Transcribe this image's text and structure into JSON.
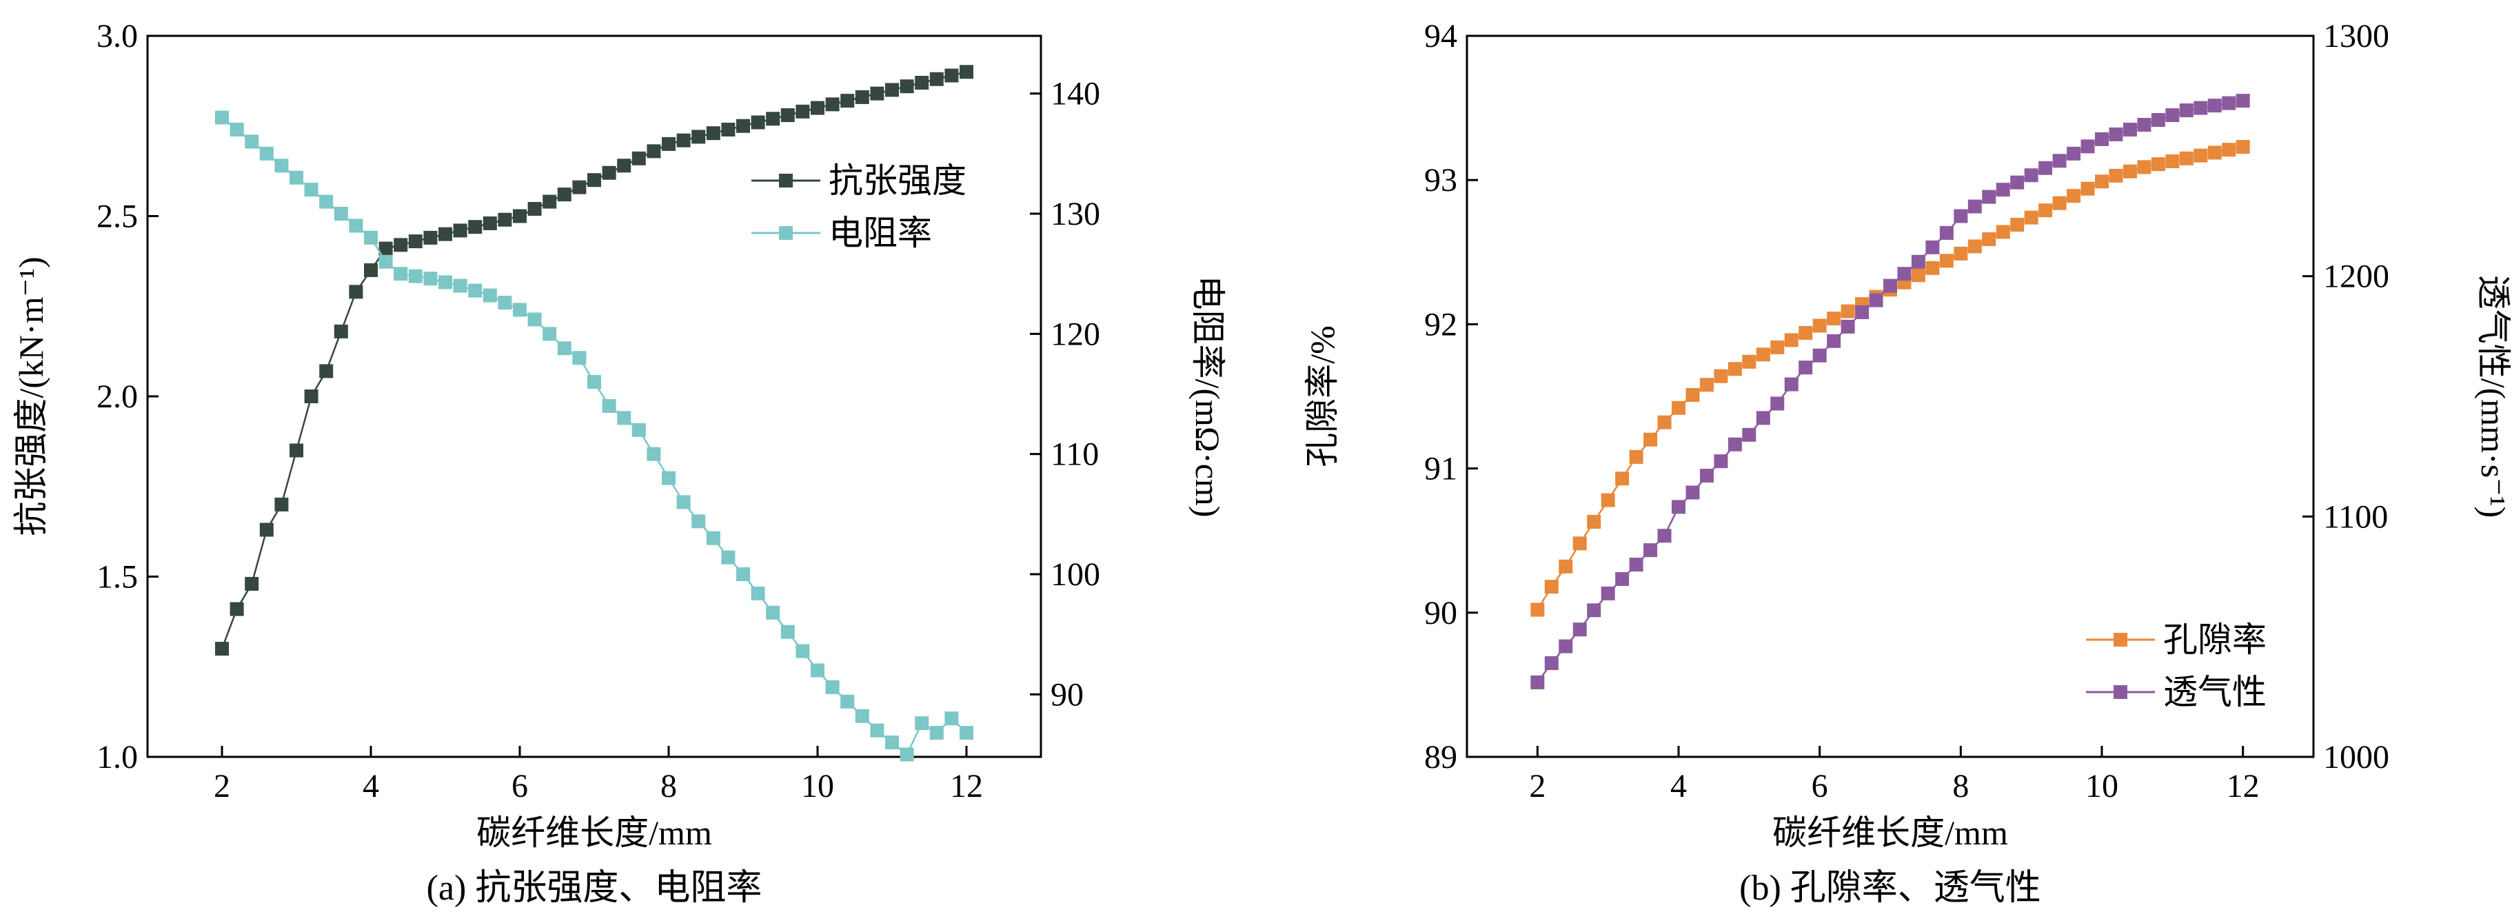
{
  "chart_data": [
    {
      "panel_caption": "(a) 抗张强度、电阻率",
      "type": "line",
      "xlabel": "碳纤维长度/mm",
      "ylabel_left": "抗张强度/(kN·m⁻¹)",
      "ylabel_right": "电阻率/(mΩ·cm)",
      "xlim": [
        1,
        13
      ],
      "ylim_left": [
        1.0,
        3.0
      ],
      "ylim_right": [
        84.8,
        144.8
      ],
      "xticks": [
        "2",
        "4",
        "6",
        "8",
        "10",
        "12"
      ],
      "yticks_left": [
        "1.0",
        "1.5",
        "2.0",
        "2.5",
        "3.0"
      ],
      "yticks_right": [
        "90",
        "100",
        "110",
        "120",
        "130",
        "140"
      ],
      "legend_position": "upper-right",
      "grid": false,
      "series": [
        {
          "name": "抗张强度",
          "axis": "left",
          "color": "#36473f",
          "marker": "square",
          "x": [
            2,
            2.2,
            2.4,
            2.6,
            2.8,
            3,
            3.2,
            3.4,
            3.6,
            3.8,
            4,
            4.2,
            4.4,
            4.6,
            4.8,
            5,
            5.2,
            5.4,
            5.6,
            5.8,
            6,
            6.2,
            6.4,
            6.6,
            6.8,
            7,
            7.2,
            7.4,
            7.6,
            7.8,
            8,
            8.2,
            8.4,
            8.6,
            8.8,
            9,
            9.2,
            9.4,
            9.6,
            9.8,
            10,
            10.2,
            10.4,
            10.6,
            10.8,
            11,
            11.2,
            11.4,
            11.6,
            11.8,
            12
          ],
          "y": [
            1.3,
            1.41,
            1.48,
            1.63,
            1.7,
            1.85,
            2.0,
            2.07,
            2.18,
            2.29,
            2.35,
            2.41,
            2.42,
            2.43,
            2.44,
            2.45,
            2.46,
            2.47,
            2.48,
            2.49,
            2.5,
            2.52,
            2.54,
            2.56,
            2.58,
            2.6,
            2.62,
            2.64,
            2.66,
            2.68,
            2.7,
            2.71,
            2.72,
            2.73,
            2.74,
            2.75,
            2.76,
            2.77,
            2.78,
            2.79,
            2.8,
            2.81,
            2.82,
            2.83,
            2.84,
            2.85,
            2.86,
            2.87,
            2.88,
            2.89,
            2.9
          ]
        },
        {
          "name": "电阻率",
          "axis": "right",
          "color": "#7cc6c6",
          "marker": "square",
          "x": [
            2,
            2.2,
            2.4,
            2.6,
            2.8,
            3,
            3.2,
            3.4,
            3.6,
            3.8,
            4,
            4.2,
            4.4,
            4.6,
            4.8,
            5,
            5.2,
            5.4,
            5.6,
            5.8,
            6,
            6.2,
            6.4,
            6.6,
            6.8,
            7,
            7.2,
            7.4,
            7.6,
            7.8,
            8,
            8.2,
            8.4,
            8.6,
            8.8,
            9,
            9.2,
            9.4,
            9.6,
            9.8,
            10,
            10.2,
            10.4,
            10.6,
            10.8,
            11,
            11.2,
            11.4,
            11.6,
            11.8,
            12
          ],
          "y": [
            138,
            137,
            136,
            135,
            134,
            133,
            132,
            131,
            130,
            129,
            128,
            126,
            125,
            124.8,
            124.6,
            124.3,
            124,
            123.6,
            123.2,
            122.6,
            122,
            121.2,
            120,
            118.8,
            118,
            116,
            114,
            113,
            112,
            110,
            108,
            106,
            104.4,
            103,
            101.4,
            100,
            98.4,
            96.8,
            95.2,
            93.6,
            92,
            90.6,
            89.4,
            88.2,
            87,
            86,
            85,
            87.6,
            86.8,
            88,
            86.8
          ]
        }
      ]
    },
    {
      "panel_caption": "(b) 孔隙率、透气性",
      "type": "line",
      "xlabel": "碳纤维长度/mm",
      "ylabel_left": "孔隙率/%",
      "ylabel_right": "透气性/(mm·s⁻¹)",
      "xlim": [
        1,
        13
      ],
      "ylim_left": [
        89,
        94
      ],
      "ylim_right": [
        1000,
        1300
      ],
      "xticks": [
        "2",
        "4",
        "6",
        "8",
        "10",
        "12"
      ],
      "yticks_left": [
        "89",
        "90",
        "91",
        "92",
        "93",
        "94"
      ],
      "yticks_right": [
        "1000",
        "1100",
        "1200",
        "1300"
      ],
      "legend_position": "lower-right",
      "grid": false,
      "series": [
        {
          "name": "孔隙率",
          "axis": "left",
          "color": "#e8883a",
          "marker": "square",
          "x": [
            2,
            2.2,
            2.4,
            2.6,
            2.8,
            3,
            3.2,
            3.4,
            3.6,
            3.8,
            4,
            4.2,
            4.4,
            4.6,
            4.8,
            5,
            5.2,
            5.4,
            5.6,
            5.8,
            6,
            6.2,
            6.4,
            6.6,
            6.8,
            7,
            7.2,
            7.4,
            7.6,
            7.8,
            8,
            8.2,
            8.4,
            8.6,
            8.8,
            9,
            9.2,
            9.4,
            9.6,
            9.8,
            10,
            10.2,
            10.4,
            10.6,
            10.8,
            11,
            11.2,
            11.4,
            11.6,
            11.8,
            12
          ],
          "y": [
            90.02,
            90.18,
            90.32,
            90.48,
            90.63,
            90.78,
            90.93,
            91.08,
            91.2,
            91.32,
            91.42,
            91.51,
            91.58,
            91.64,
            91.69,
            91.74,
            91.79,
            91.84,
            91.89,
            91.94,
            91.99,
            92.04,
            92.09,
            92.14,
            92.19,
            92.24,
            92.29,
            92.34,
            92.39,
            92.44,
            92.49,
            92.54,
            92.59,
            92.64,
            92.69,
            92.74,
            92.79,
            92.84,
            92.89,
            92.94,
            92.99,
            93.03,
            93.06,
            93.09,
            93.11,
            93.13,
            93.15,
            93.17,
            93.19,
            93.21,
            93.23
          ]
        },
        {
          "name": "透气性",
          "axis": "right",
          "color": "#8b5a9e",
          "marker": "square",
          "x": [
            2,
            2.2,
            2.4,
            2.6,
            2.8,
            3,
            3.2,
            3.4,
            3.6,
            3.8,
            4,
            4.2,
            4.4,
            4.6,
            4.8,
            5,
            5.2,
            5.4,
            5.6,
            5.8,
            6,
            6.2,
            6.4,
            6.6,
            6.8,
            7,
            7.2,
            7.4,
            7.6,
            7.8,
            8,
            8.2,
            8.4,
            8.6,
            8.8,
            9,
            9.2,
            9.4,
            9.6,
            9.8,
            10,
            10.2,
            10.4,
            10.6,
            10.8,
            11,
            11.2,
            11.4,
            11.6,
            11.8,
            12
          ],
          "y": [
            1031,
            1039,
            1046,
            1053,
            1061,
            1068,
            1074,
            1080,
            1086,
            1092,
            1104,
            1110,
            1117,
            1123,
            1130,
            1134,
            1141,
            1147,
            1155,
            1162,
            1167,
            1173,
            1179,
            1185,
            1190,
            1196,
            1201,
            1206,
            1212,
            1218,
            1225,
            1229,
            1233,
            1236,
            1239,
            1242,
            1245,
            1248,
            1251,
            1254,
            1257,
            1259,
            1261,
            1263,
            1265,
            1267,
            1269,
            1270,
            1271,
            1272,
            1273
          ]
        }
      ]
    }
  ]
}
